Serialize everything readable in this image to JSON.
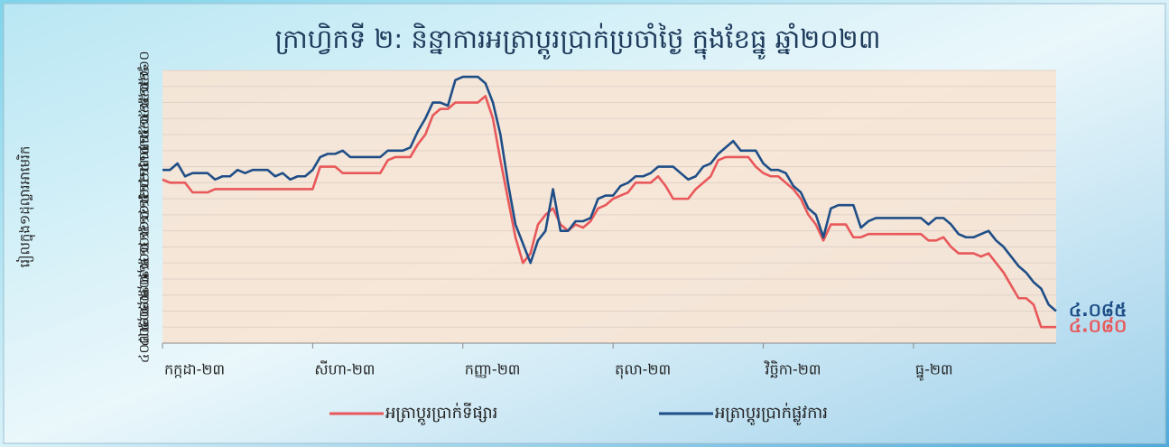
{
  "chart_data": {
    "type": "line",
    "title": "ក្រាហ្វិកទី ២: និន្នាការអត្រាប្តូរប្រាក់ប្រចាំថ្ងៃ ក្នុងខែធ្នូ ឆ្នាំ២០២៣",
    "y_label": "រៀលក្នុង១ដុល្លារអាមេរិក",
    "xlim": [
      0,
      119
    ],
    "xticks": [
      {
        "value": 0,
        "label": "កក្កដា-២៣"
      },
      {
        "value": 20,
        "label": "សីហា-២៣"
      },
      {
        "value": 40,
        "label": "កញ្ញា-២៣"
      },
      {
        "value": 60,
        "label": "តុលា-២៣"
      },
      {
        "value": 80,
        "label": "វិច្ឆិកា-២៣"
      },
      {
        "value": 100,
        "label": "ធ្នូ-២៣"
      }
    ],
    "ylim": [
      4075,
      4160
    ],
    "yticks": [
      {
        "value": 4075,
        "label": "៤០៧៥"
      },
      {
        "value": 4080,
        "label": "៤០៨០"
      },
      {
        "value": 4085,
        "label": "៤០៨៥"
      },
      {
        "value": 4090,
        "label": "៤០៩០"
      },
      {
        "value": 4095,
        "label": "៤០៩៥"
      },
      {
        "value": 4100,
        "label": "៤១០០"
      },
      {
        "value": 4105,
        "label": "៤១០៥"
      },
      {
        "value": 4110,
        "label": "៤១១០"
      },
      {
        "value": 4115,
        "label": "៤១១៥"
      },
      {
        "value": 4120,
        "label": "៤១២០"
      },
      {
        "value": 4125,
        "label": "៤១២៥"
      },
      {
        "value": 4130,
        "label": "៤១៣០"
      },
      {
        "value": 4135,
        "label": "៤១៣៥"
      },
      {
        "value": 4140,
        "label": "៤១៤០"
      },
      {
        "value": 4145,
        "label": "៤១៤៥"
      },
      {
        "value": 4150,
        "label": "៤១៥០"
      },
      {
        "value": 4155,
        "label": "៤១៥៥"
      },
      {
        "value": 4160,
        "label": "៤១៦០"
      }
    ],
    "grid": true,
    "series": [
      {
        "name": "អត្រាប្តូរប្រាក់ទីផ្សារ",
        "color": "#e8585a",
        "values": [
          4126,
          4125,
          4125,
          4125,
          4122,
          4122,
          4122,
          4123,
          4123,
          4123,
          4123,
          4123,
          4123,
          4123,
          4123,
          4123,
          4123,
          4123,
          4123,
          4123,
          4123,
          4130,
          4130,
          4130,
          4128,
          4128,
          4128,
          4128,
          4128,
          4128,
          4132,
          4133,
          4133,
          4133,
          4137,
          4140,
          4146,
          4148,
          4148,
          4150,
          4150,
          4150,
          4150,
          4152,
          4145,
          4132,
          4120,
          4108,
          4100,
          4103,
          4112,
          4115,
          4117,
          4112,
          4110,
          4112,
          4111,
          4113,
          4117,
          4118,
          4120,
          4121,
          4122,
          4125,
          4125,
          4125,
          4127,
          4124,
          4120,
          4120,
          4120,
          4123,
          4125,
          4127,
          4132,
          4133,
          4133,
          4133,
          4133,
          4130,
          4128,
          4127,
          4127,
          4125,
          4123,
          4120,
          4115,
          4112,
          4107,
          4112,
          4112,
          4112,
          4108,
          4108,
          4109,
          4109,
          4109,
          4109,
          4109,
          4109,
          4109,
          4109,
          4107,
          4107,
          4108,
          4105,
          4103,
          4103,
          4103,
          4102,
          4103,
          4100,
          4097,
          4093,
          4089,
          4089,
          4087,
          4080,
          4080,
          4080
        ],
        "value_labels": [
          null,
          null,
          null,
          null,
          null,
          null,
          null,
          null,
          null,
          null,
          null,
          null,
          null,
          null,
          null,
          null,
          null,
          null,
          null,
          null,
          null,
          null,
          null,
          null,
          null,
          null,
          null,
          null,
          null,
          null,
          null,
          null,
          null,
          null,
          null,
          null,
          null,
          null,
          null,
          null,
          null,
          null,
          null,
          null,
          null,
          null,
          null,
          null,
          null,
          null,
          null,
          null,
          null,
          null,
          null,
          null,
          null,
          null,
          null,
          null,
          null,
          null,
          null,
          null,
          null,
          null,
          null,
          null,
          null,
          null,
          null,
          null,
          null,
          null,
          null,
          null,
          null,
          null,
          null,
          null,
          null,
          null,
          null,
          null,
          null,
          null,
          null,
          null,
          null,
          null,
          null,
          null,
          null,
          null,
          null,
          null,
          null,
          null,
          null,
          null,
          null,
          null,
          null,
          null,
          null,
          null,
          null,
          null,
          null,
          null,
          null,
          null,
          null,
          null,
          null,
          null,
          null,
          null,
          null,
          "៤.០៨០"
        ]
      },
      {
        "name": "អត្រាប្តូរប្រាក់ផ្លូវការ",
        "color": "#1f4e87",
        "values": [
          4129,
          4129,
          4131,
          4127,
          4128,
          4128,
          4128,
          4126,
          4127,
          4127,
          4129,
          4128,
          4129,
          4129,
          4129,
          4127,
          4128,
          4126,
          4127,
          4127,
          4129,
          4133,
          4134,
          4134,
          4135,
          4133,
          4133,
          4133,
          4133,
          4133,
          4135,
          4135,
          4135,
          4136,
          4141,
          4145,
          4150,
          4150,
          4149,
          4157,
          4158,
          4158,
          4158,
          4156,
          4150,
          4140,
          4125,
          4112,
          4106,
          4100,
          4107,
          4110,
          4123,
          4110,
          4110,
          4113,
          4113,
          4114,
          4120,
          4121,
          4121,
          4124,
          4125,
          4127,
          4127,
          4128,
          4130,
          4130,
          4130,
          4128,
          4126,
          4127,
          4130,
          4131,
          4134,
          4136,
          4138,
          4135,
          4135,
          4135,
          4131,
          4129,
          4129,
          4128,
          4124,
          4122,
          4117,
          4115,
          4108,
          4117,
          4118,
          4118,
          4118,
          4111,
          4113,
          4114,
          4114,
          4114,
          4114,
          4114,
          4114,
          4114,
          4112,
          4114,
          4114,
          4112,
          4109,
          4108,
          4108,
          4109,
          4110,
          4107,
          4105,
          4102,
          4099,
          4097,
          4094,
          4092,
          4087,
          4085
        ],
        "value_labels": [
          null,
          null,
          null,
          null,
          null,
          null,
          null,
          null,
          null,
          null,
          null,
          null,
          null,
          null,
          null,
          null,
          null,
          null,
          null,
          null,
          null,
          null,
          null,
          null,
          null,
          null,
          null,
          null,
          null,
          null,
          null,
          null,
          null,
          null,
          null,
          null,
          null,
          null,
          null,
          null,
          null,
          null,
          null,
          null,
          null,
          null,
          null,
          null,
          null,
          null,
          null,
          null,
          null,
          null,
          null,
          null,
          null,
          null,
          null,
          null,
          null,
          null,
          null,
          null,
          null,
          null,
          null,
          null,
          null,
          null,
          null,
          null,
          null,
          null,
          null,
          null,
          null,
          null,
          null,
          null,
          null,
          null,
          null,
          null,
          null,
          null,
          null,
          null,
          null,
          null,
          null,
          null,
          null,
          null,
          null,
          null,
          null,
          null,
          null,
          null,
          null,
          null,
          null,
          null,
          null,
          null,
          null,
          null,
          null,
          null,
          null,
          null,
          null,
          null,
          null,
          null,
          null,
          null,
          null,
          "៤.០៨៥"
        ]
      }
    ]
  }
}
